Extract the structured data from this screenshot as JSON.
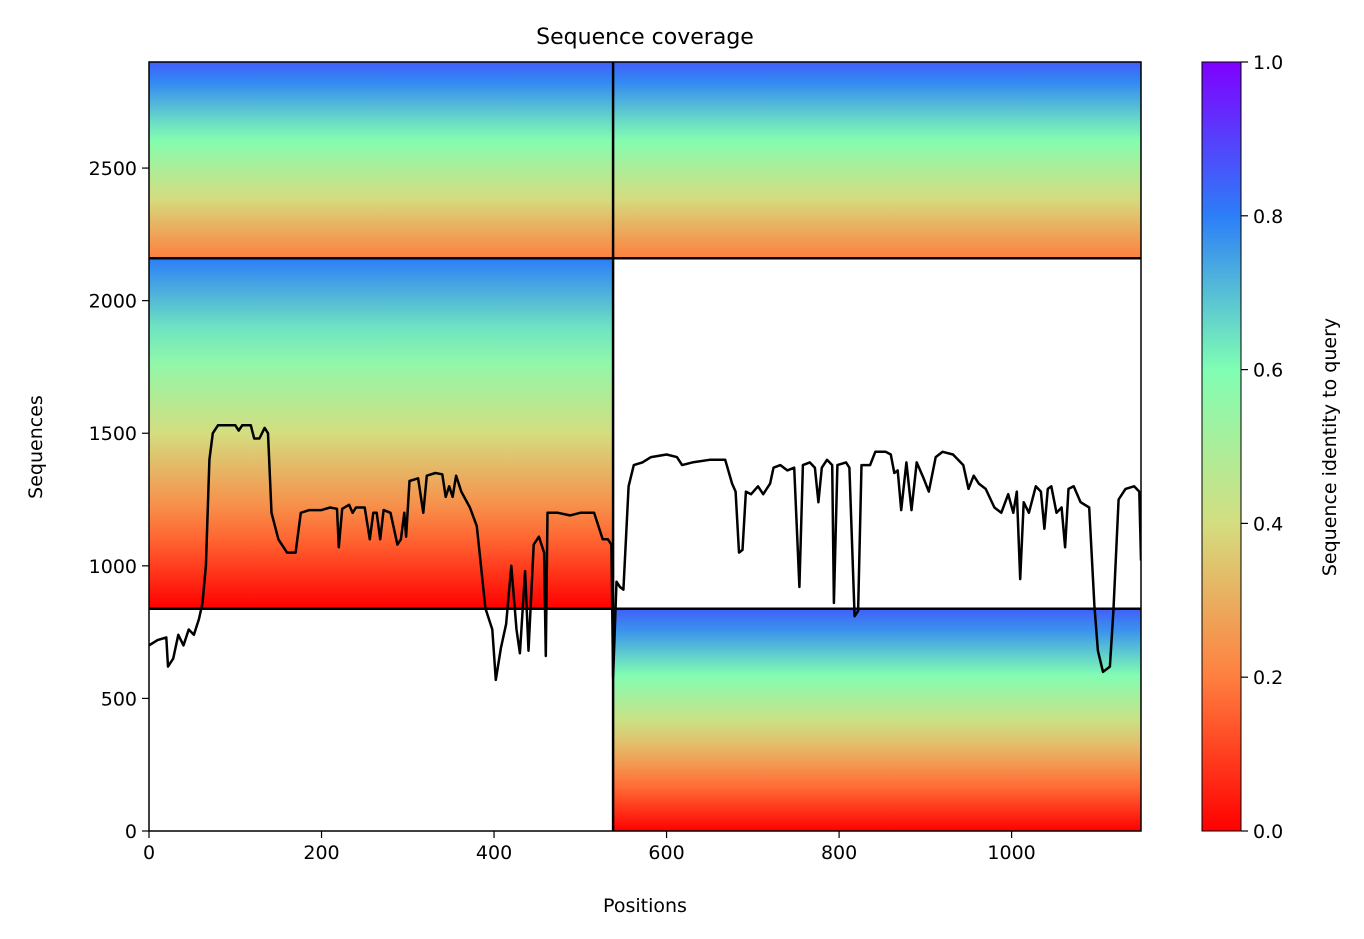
{
  "chart_data": {
    "type": "heatmap",
    "title": "Sequence coverage",
    "xlabel": "Positions",
    "ylabel": "Sequences",
    "xlim": [
      0,
      1150
    ],
    "ylim": [
      0,
      2900
    ],
    "xticks": [
      0,
      200,
      400,
      600,
      800,
      1000
    ],
    "yticks": [
      0,
      500,
      1000,
      1500,
      2000,
      2500
    ],
    "x_tick_labels": [
      "0",
      "200",
      "400",
      "600",
      "800",
      "1000"
    ],
    "y_tick_labels": [
      "0",
      "500",
      "1000",
      "1500",
      "2000",
      "2500"
    ],
    "colorbar": {
      "label": "Sequence identity to query",
      "range": [
        0.0,
        1.0
      ],
      "ticks": [
        0.0,
        0.2,
        0.4,
        0.6,
        0.8,
        1.0
      ],
      "tick_labels": [
        "0.0",
        "0.2",
        "0.4",
        "0.6",
        "0.8",
        "1.0"
      ],
      "colormap": "rainbow_r",
      "stops": [
        "#ff0000",
        "#ff7f3f",
        "#d4dd80",
        "#80feb3",
        "#2c7ef8",
        "#8000ff"
      ]
    },
    "block_boundaries": {
      "x": [
        538
      ],
      "y": [
        838,
        2160
      ]
    },
    "msa_blocks": [
      {
        "name": "paired-rows",
        "x": [
          0,
          1150
        ],
        "y": [
          2160,
          2900
        ],
        "identity": [
          0.2,
          0.85
        ]
      },
      {
        "name": "chain-a-rows",
        "x": [
          0,
          538
        ],
        "y": [
          838,
          2160
        ],
        "identity": [
          0.0,
          0.8
        ]
      },
      {
        "name": "chain-b-rows",
        "x": [
          538,
          1150
        ],
        "y": [
          0,
          838
        ],
        "identity": [
          0.0,
          0.85
        ]
      }
    ],
    "series": [
      {
        "type": "line",
        "color": "#000000",
        "points": [
          [
            0,
            700
          ],
          [
            10,
            720
          ],
          [
            20,
            730
          ],
          [
            22,
            620
          ],
          [
            28,
            650
          ],
          [
            34,
            740
          ],
          [
            40,
            700
          ],
          [
            46,
            760
          ],
          [
            52,
            740
          ],
          [
            58,
            800
          ],
          [
            62,
            860
          ],
          [
            66,
            1000
          ],
          [
            70,
            1400
          ],
          [
            74,
            1500
          ],
          [
            80,
            1530
          ],
          [
            90,
            1530
          ],
          [
            100,
            1530
          ],
          [
            104,
            1510
          ],
          [
            108,
            1530
          ],
          [
            118,
            1530
          ],
          [
            122,
            1480
          ],
          [
            128,
            1480
          ],
          [
            134,
            1520
          ],
          [
            138,
            1500
          ],
          [
            142,
            1200
          ],
          [
            150,
            1100
          ],
          [
            160,
            1050
          ],
          [
            170,
            1050
          ],
          [
            176,
            1200
          ],
          [
            186,
            1210
          ],
          [
            200,
            1210
          ],
          [
            210,
            1220
          ],
          [
            218,
            1215
          ],
          [
            220,
            1070
          ],
          [
            224,
            1215
          ],
          [
            232,
            1230
          ],
          [
            236,
            1200
          ],
          [
            240,
            1220
          ],
          [
            250,
            1220
          ],
          [
            256,
            1100
          ],
          [
            260,
            1200
          ],
          [
            264,
            1200
          ],
          [
            268,
            1100
          ],
          [
            272,
            1210
          ],
          [
            280,
            1200
          ],
          [
            288,
            1080
          ],
          [
            292,
            1100
          ],
          [
            296,
            1200
          ],
          [
            298,
            1110
          ],
          [
            302,
            1320
          ],
          [
            312,
            1330
          ],
          [
            318,
            1200
          ],
          [
            322,
            1340
          ],
          [
            332,
            1350
          ],
          [
            340,
            1345
          ],
          [
            344,
            1260
          ],
          [
            348,
            1300
          ],
          [
            352,
            1260
          ],
          [
            356,
            1340
          ],
          [
            362,
            1280
          ],
          [
            372,
            1220
          ],
          [
            380,
            1150
          ],
          [
            390,
            840
          ],
          [
            398,
            760
          ],
          [
            402,
            570
          ],
          [
            408,
            690
          ],
          [
            414,
            780
          ],
          [
            420,
            1000
          ],
          [
            426,
            760
          ],
          [
            430,
            670
          ],
          [
            436,
            980
          ],
          [
            440,
            680
          ],
          [
            446,
            1080
          ],
          [
            452,
            1110
          ],
          [
            458,
            1050
          ],
          [
            460,
            660
          ],
          [
            462,
            1200
          ],
          [
            474,
            1200
          ],
          [
            488,
            1190
          ],
          [
            500,
            1200
          ],
          [
            516,
            1200
          ],
          [
            526,
            1100
          ],
          [
            532,
            1100
          ],
          [
            536,
            1080
          ],
          [
            538,
            580
          ],
          [
            542,
            940
          ],
          [
            546,
            920
          ],
          [
            550,
            910
          ],
          [
            556,
            1300
          ],
          [
            562,
            1380
          ],
          [
            572,
            1390
          ],
          [
            582,
            1410
          ],
          [
            600,
            1420
          ],
          [
            612,
            1410
          ],
          [
            618,
            1380
          ],
          [
            630,
            1390
          ],
          [
            650,
            1400
          ],
          [
            668,
            1400
          ],
          [
            676,
            1310
          ],
          [
            680,
            1280
          ],
          [
            684,
            1050
          ],
          [
            688,
            1060
          ],
          [
            692,
            1280
          ],
          [
            698,
            1270
          ],
          [
            706,
            1300
          ],
          [
            712,
            1270
          ],
          [
            720,
            1310
          ],
          [
            724,
            1370
          ],
          [
            732,
            1380
          ],
          [
            740,
            1360
          ],
          [
            748,
            1370
          ],
          [
            754,
            920
          ],
          [
            758,
            1380
          ],
          [
            766,
            1390
          ],
          [
            772,
            1370
          ],
          [
            776,
            1240
          ],
          [
            780,
            1370
          ],
          [
            786,
            1400
          ],
          [
            792,
            1380
          ],
          [
            794,
            860
          ],
          [
            798,
            1380
          ],
          [
            808,
            1390
          ],
          [
            812,
            1370
          ],
          [
            818,
            810
          ],
          [
            822,
            830
          ],
          [
            826,
            1380
          ],
          [
            836,
            1380
          ],
          [
            842,
            1430
          ],
          [
            854,
            1430
          ],
          [
            860,
            1420
          ],
          [
            864,
            1350
          ],
          [
            868,
            1360
          ],
          [
            872,
            1210
          ],
          [
            878,
            1390
          ],
          [
            884,
            1210
          ],
          [
            890,
            1390
          ],
          [
            898,
            1330
          ],
          [
            904,
            1280
          ],
          [
            912,
            1410
          ],
          [
            920,
            1430
          ],
          [
            932,
            1420
          ],
          [
            944,
            1380
          ],
          [
            950,
            1290
          ],
          [
            956,
            1340
          ],
          [
            962,
            1310
          ],
          [
            970,
            1290
          ],
          [
            980,
            1220
          ],
          [
            988,
            1200
          ],
          [
            996,
            1270
          ],
          [
            1002,
            1200
          ],
          [
            1006,
            1280
          ],
          [
            1010,
            950
          ],
          [
            1014,
            1240
          ],
          [
            1020,
            1200
          ],
          [
            1028,
            1300
          ],
          [
            1034,
            1280
          ],
          [
            1038,
            1140
          ],
          [
            1042,
            1290
          ],
          [
            1046,
            1300
          ],
          [
            1052,
            1200
          ],
          [
            1058,
            1220
          ],
          [
            1062,
            1070
          ],
          [
            1066,
            1290
          ],
          [
            1072,
            1300
          ],
          [
            1080,
            1240
          ],
          [
            1090,
            1220
          ],
          [
            1096,
            850
          ],
          [
            1100,
            680
          ],
          [
            1106,
            600
          ],
          [
            1114,
            620
          ],
          [
            1118,
            830
          ],
          [
            1124,
            1250
          ],
          [
            1132,
            1290
          ],
          [
            1142,
            1300
          ],
          [
            1148,
            1280
          ],
          [
            1150,
            1020
          ]
        ]
      }
    ]
  }
}
